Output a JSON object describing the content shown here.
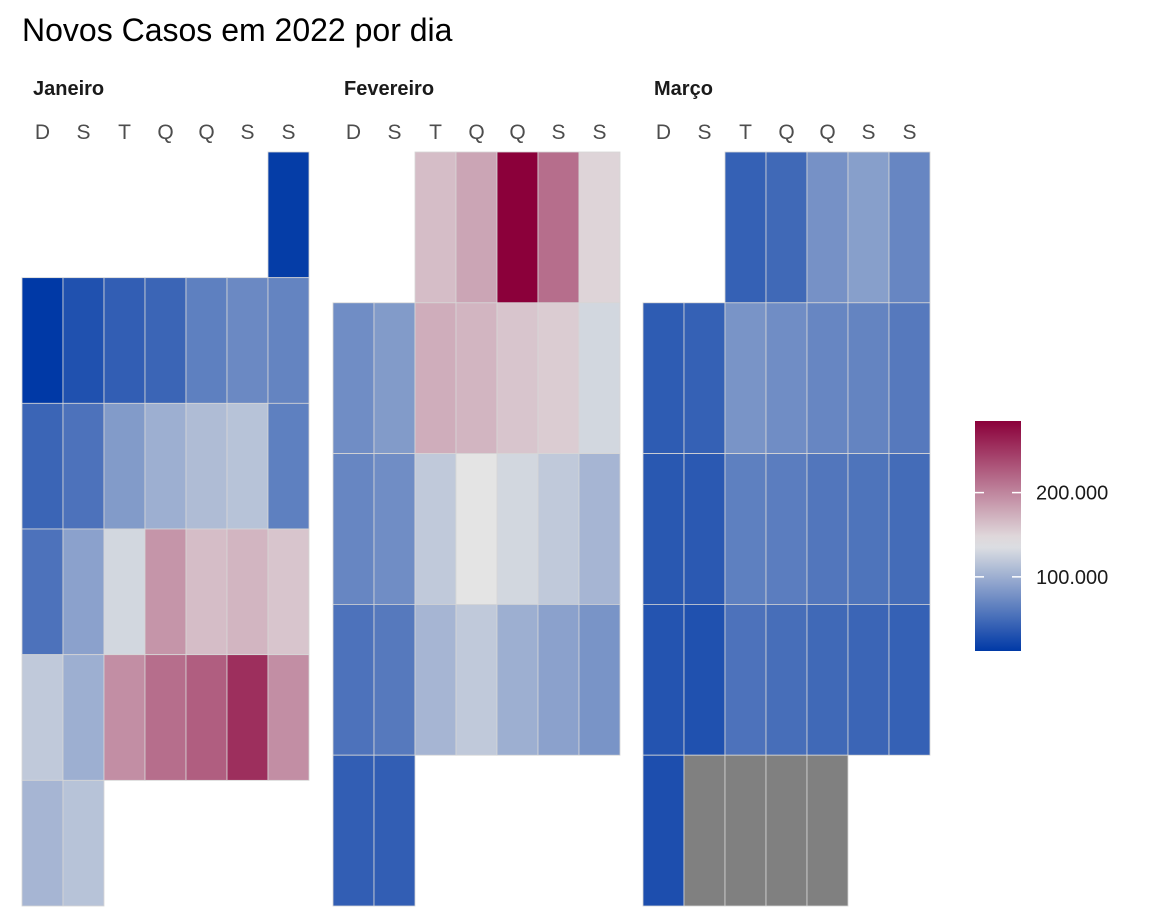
{
  "title": "Novos Casos em 2022 por dia",
  "chart_data": {
    "type": "heatmap",
    "title": "Novos Casos em 2022 por dia",
    "weekday_labels": [
      "D",
      "S",
      "T",
      "Q",
      "Q",
      "S",
      "S"
    ],
    "color_scale": {
      "type": "diverging",
      "low": "#0039a6",
      "mid": "#e4e4e4",
      "high": "#8b003a",
      "midpoint": 140000,
      "min": 12000,
      "max": 285000,
      "na_color": "#808080"
    },
    "legend": {
      "position": "right",
      "ticks": [
        100000,
        200000
      ],
      "tick_labels": [
        "100.000",
        "200.000"
      ]
    },
    "months": [
      {
        "name": "Janeiro",
        "weeks": [
          [
            null,
            null,
            null,
            null,
            null,
            null,
            15000
          ],
          [
            12000,
            30000,
            40000,
            45000,
            65000,
            72000,
            68000
          ],
          [
            45000,
            55000,
            85000,
            100000,
            110000,
            115000,
            65000
          ],
          [
            55000,
            90000,
            130000,
            190000,
            165000,
            170000,
            160000
          ],
          [
            120000,
            100000,
            195000,
            215000,
            225000,
            255000,
            195000
          ],
          [
            105000,
            115000,
            null,
            null,
            null,
            null,
            null
          ]
        ]
      },
      {
        "name": "Fevereiro",
        "weeks": [
          [
            null,
            null,
            165000,
            180000,
            285000,
            215000,
            150000
          ],
          [
            75000,
            85000,
            175000,
            170000,
            160000,
            155000,
            130000
          ],
          [
            70000,
            75000,
            120000,
            140000,
            130000,
            120000,
            105000
          ],
          [
            55000,
            60000,
            105000,
            120000,
            100000,
            90000,
            80000
          ],
          [
            40000,
            40000,
            null,
            null,
            null,
            null,
            null
          ]
        ]
      },
      {
        "name": "Março",
        "weeks": [
          [
            null,
            null,
            42000,
            48000,
            78000,
            88000,
            70000
          ],
          [
            38000,
            42000,
            80000,
            75000,
            70000,
            68000,
            60000
          ],
          [
            35000,
            36000,
            65000,
            63000,
            58000,
            56000,
            50000
          ],
          [
            32000,
            30000,
            55000,
            52000,
            48000,
            45000,
            42000
          ],
          [
            28000,
            "NA",
            "NA",
            "NA",
            "NA",
            null,
            null
          ]
        ]
      }
    ]
  }
}
